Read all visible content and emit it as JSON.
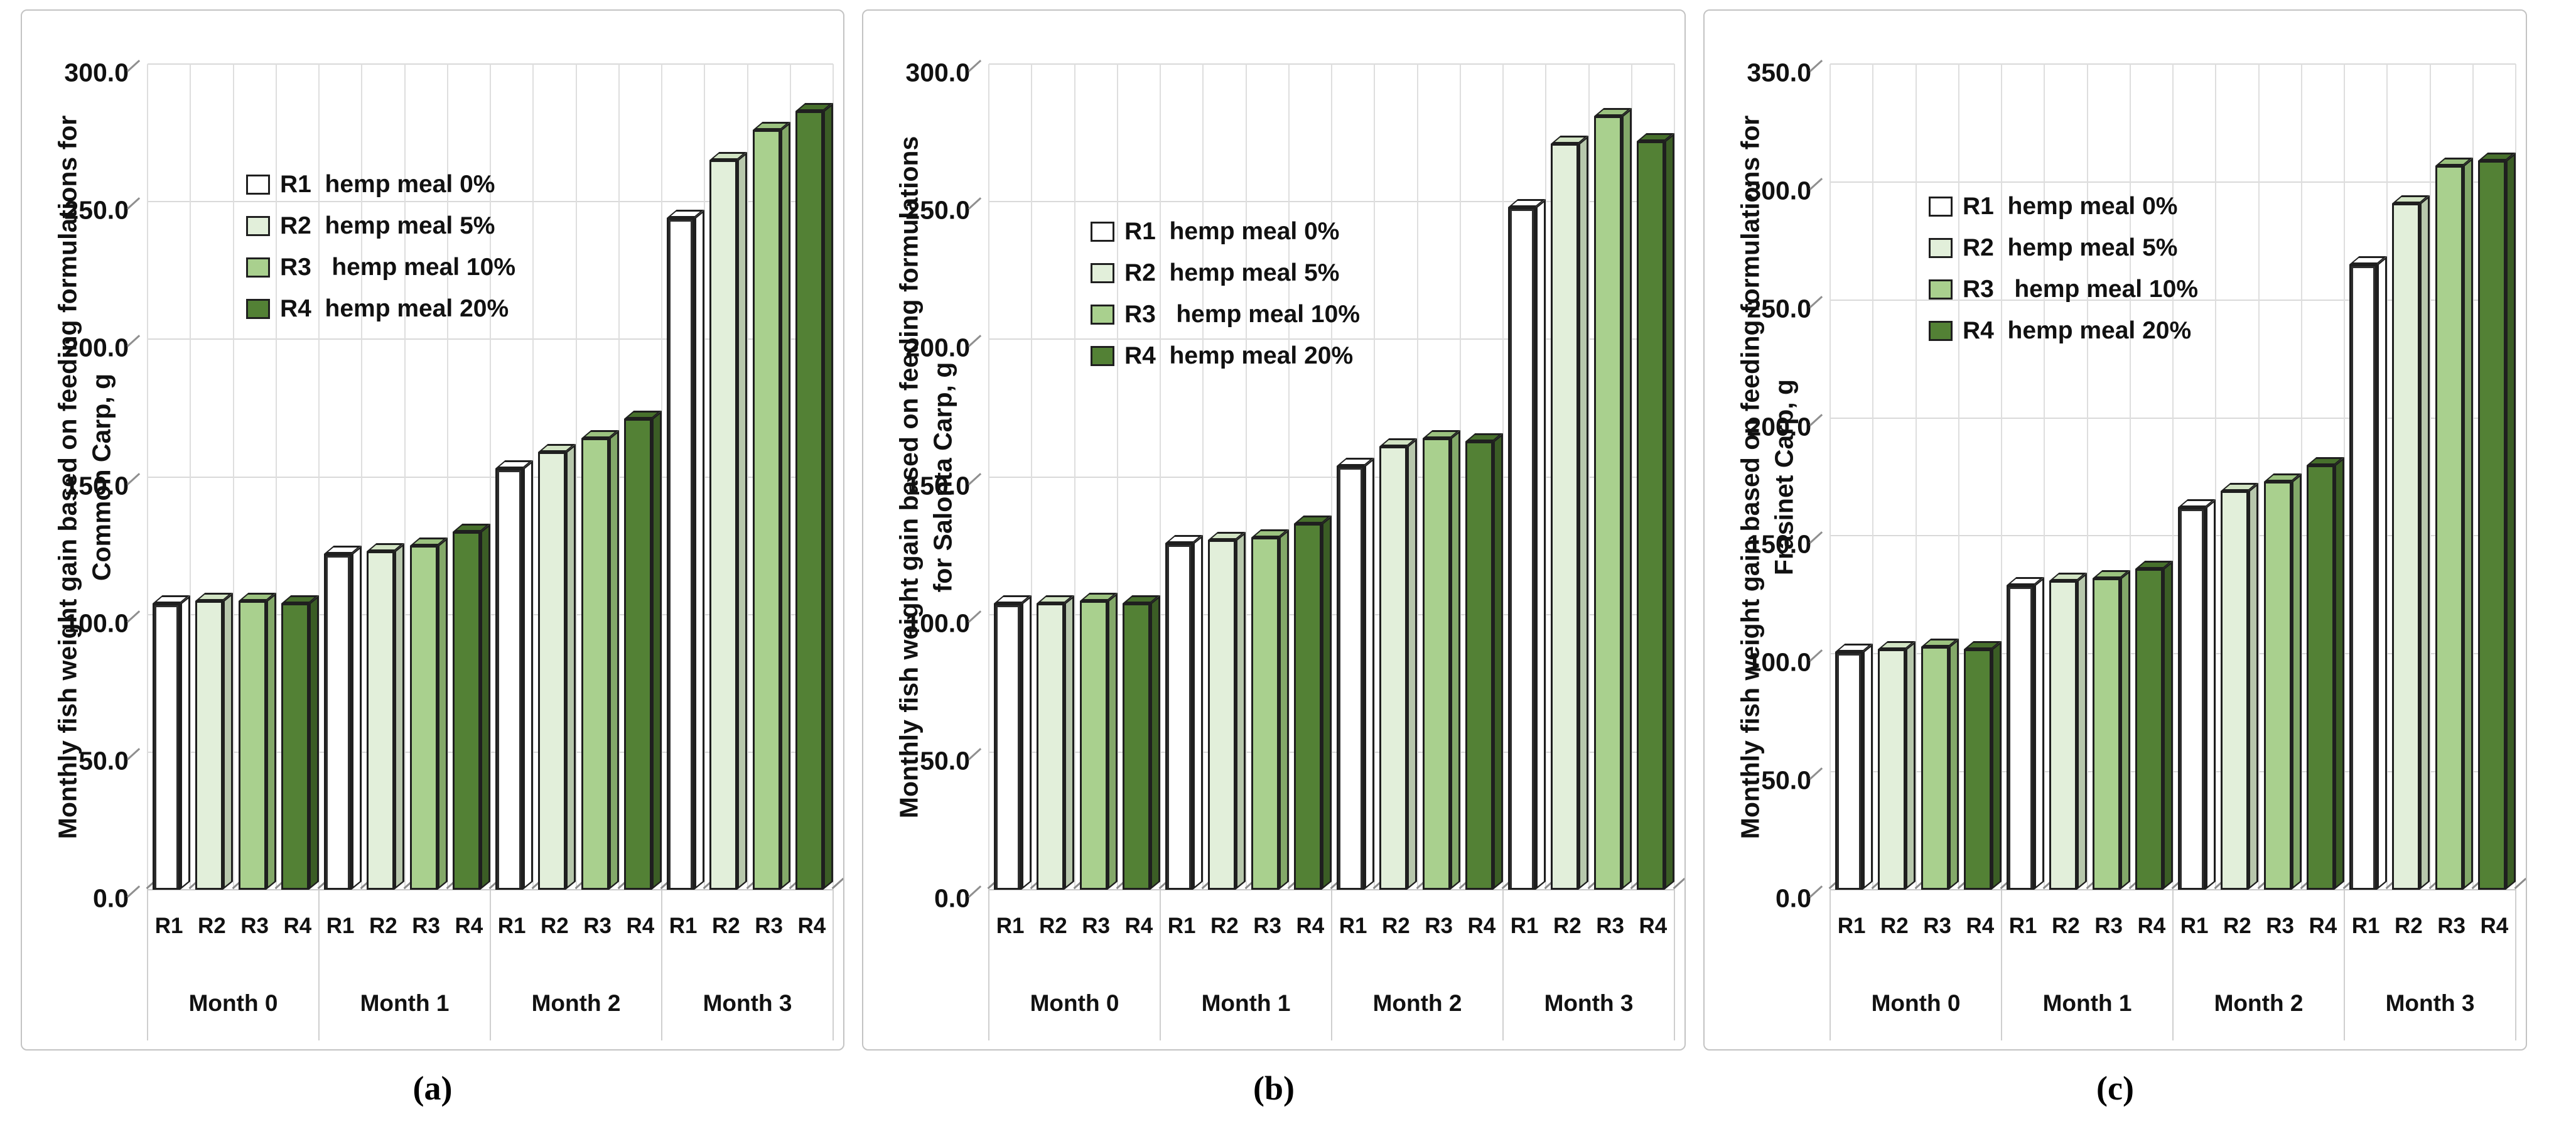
{
  "figure": {
    "background": "#ffffff",
    "gridline_color": "#d9d9d9",
    "panel_border_color": "#c3c3c3"
  },
  "legend": {
    "items": [
      {
        "label": "R1  hemp meal 0%",
        "color": "#ffffff",
        "top": "#ffffff",
        "side": "#ffffff",
        "hollow": true
      },
      {
        "label": "R2  hemp meal 5%",
        "color": "#e2efda",
        "top": "#d2e4c4",
        "side": "#b7c7ac",
        "hollow": false
      },
      {
        "label": "R3   hemp meal 10%",
        "color": "#a9d08e",
        "top": "#9bc27f",
        "side": "#83a869",
        "hollow": false
      },
      {
        "label": "R4  hemp meal 20%",
        "color": "#538135",
        "top": "#47702c",
        "side": "#3b5d25",
        "hollow": false
      }
    ]
  },
  "chart_data": [
    {
      "type": "bar",
      "caption": "(a)",
      "title_lines": [
        "Monthly fish weight gain based on feeding formulations for",
        "Common Carp, g"
      ],
      "ylabel": "Monthly fish weight gain based on feeding formulations for Common Carp, g",
      "ylim": [
        0,
        300
      ],
      "ytick_labels": [
        "300.0",
        "250.0",
        "200.0",
        "150.0",
        "100.0",
        "50.0",
        "0.0"
      ],
      "grid": true,
      "legend_position": "upper-middle-left",
      "legend_xy": [
        357,
        255
      ],
      "categories": [
        "Month 0",
        "Month 1",
        "Month 2",
        "Month 3"
      ],
      "sub_categories": [
        "R1",
        "R2",
        "R3",
        "R4"
      ],
      "series": [
        {
          "name": "R1 hemp meal 0%",
          "values": [
            104,
            122,
            153,
            244
          ]
        },
        {
          "name": "R2 hemp meal 5%",
          "values": [
            105,
            123,
            159,
            265
          ]
        },
        {
          "name": "R3 hemp meal 10%",
          "values": [
            105,
            125,
            164,
            276
          ]
        },
        {
          "name": "R4 hemp meal 20%",
          "values": [
            104,
            130,
            171,
            283
          ]
        }
      ]
    },
    {
      "type": "bar",
      "caption": "(b)",
      "title_lines": [
        "Monthly fish weight gain based on feeding formulations",
        "for Salonta Carp, g"
      ],
      "ylabel": "Monthly fish weight gain based on feeding formulations for Salonta Carp, g",
      "ylim": [
        0,
        300
      ],
      "ytick_labels": [
        "300.0",
        "250.0",
        "200.0",
        "150.0",
        "100.0",
        "50.0",
        "0.0"
      ],
      "grid": true,
      "legend_position": "upper-middle-left",
      "legend_xy": [
        362,
        330
      ],
      "categories": [
        "Month 0",
        "Month 1",
        "Month 2",
        "Month 3"
      ],
      "sub_categories": [
        "R1",
        "R2",
        "R3",
        "R4"
      ],
      "series": [
        {
          "name": "R1 hemp meal 0%",
          "values": [
            104,
            126,
            154,
            248
          ]
        },
        {
          "name": "R2 hemp meal 5%",
          "values": [
            104,
            127,
            161,
            271
          ]
        },
        {
          "name": "R3 hemp meal 10%",
          "values": [
            105,
            128,
            164,
            281
          ]
        },
        {
          "name": "R4 hemp meal 20%",
          "values": [
            104,
            133,
            163,
            272
          ]
        }
      ]
    },
    {
      "type": "bar",
      "caption": "(c)",
      "title_lines": [
        "Monthly fish weight gain based on feeding formulations for",
        "Frasinet Carp, g"
      ],
      "ylabel": "Monthly fish weight gain based on feeding formulations for Frasinet Carp, g",
      "ylim": [
        0,
        350
      ],
      "ytick_labels": [
        "350.0",
        "300.0",
        "250.0",
        "200.0",
        "150.0",
        "100.0",
        "50.0",
        "0.0"
      ],
      "grid": true,
      "legend_position": "upper-middle-left",
      "legend_xy": [
        357,
        290
      ],
      "categories": [
        "Month 0",
        "Month 1",
        "Month 2",
        "Month 3"
      ],
      "sub_categories": [
        "R1",
        "R2",
        "R3",
        "R4"
      ],
      "series": [
        {
          "name": "R1 hemp meal 0%",
          "values": [
            101,
            129,
            162,
            265
          ]
        },
        {
          "name": "R2 hemp meal 5%",
          "values": [
            102,
            131,
            169,
            291
          ]
        },
        {
          "name": "R3 hemp meal 10%",
          "values": [
            103,
            132,
            173,
            307
          ]
        },
        {
          "name": "R4 hemp meal 20%",
          "values": [
            102,
            136,
            180,
            309
          ]
        }
      ]
    }
  ]
}
